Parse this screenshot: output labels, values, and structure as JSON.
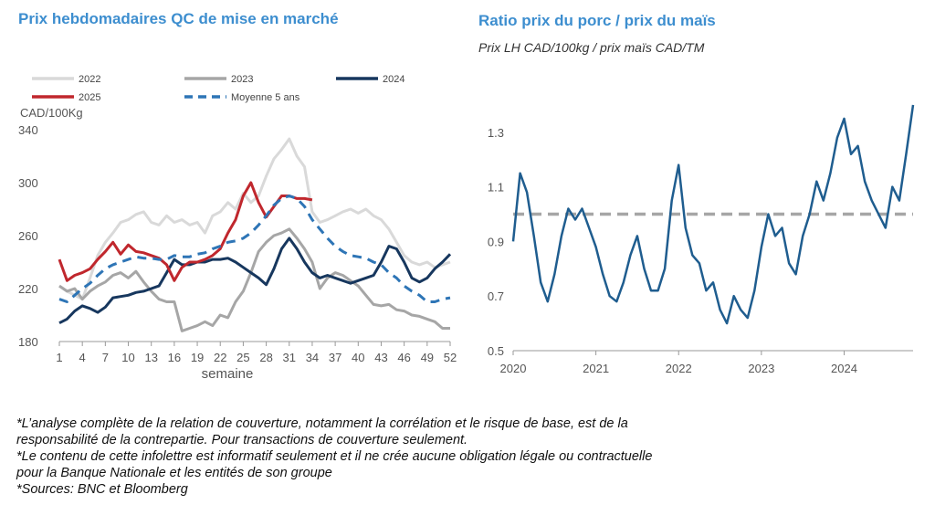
{
  "left_chart": {
    "title": "Prix hebdomadaires QC de mise en marché",
    "ylabel": "CAD/100Kg",
    "xlabel": "semaine"
  },
  "right_chart": {
    "title": "Ratio prix du porc / prix du maïs",
    "subtitle": "Prix LH CAD/100kg / prix maïs CAD/TM"
  },
  "footnotes": [
    "*L’analyse complète de la relation de couverture, notamment la corrélation et le risque de base, est de la",
    "responsabilité de la contrepartie. Pour transactions de couverture seulement.",
    "*Le contenu de cette infolettre est informatif seulement et il ne crée aucune obligation légale ou contractuelle",
    "pour la Banque Nationale et les entités de son groupe",
    "*Sources: BNC et Bloomberg"
  ],
  "chart_data": [
    {
      "type": "line",
      "title": "Prix hebdomadaires QC de mise en marché",
      "xlabel": "semaine",
      "ylabel": "CAD/100Kg",
      "xlim": [
        1,
        52
      ],
      "ylim": [
        180,
        340
      ],
      "yticks": [
        180,
        220,
        260,
        300,
        340
      ],
      "xticks": [
        1,
        4,
        7,
        10,
        13,
        16,
        19,
        22,
        25,
        28,
        31,
        34,
        37,
        40,
        43,
        46,
        49,
        52
      ],
      "grid": false,
      "legend": "top",
      "series": [
        {
          "name": "2022",
          "color": "#d9d9d9",
          "dash": "solid",
          "x": [
            1,
            2,
            3,
            4,
            5,
            6,
            7,
            8,
            9,
            10,
            11,
            12,
            13,
            14,
            15,
            16,
            17,
            18,
            19,
            20,
            21,
            22,
            23,
            24,
            25,
            26,
            27,
            28,
            29,
            30,
            31,
            32,
            33,
            34,
            35,
            36,
            37,
            38,
            39,
            40,
            41,
            42,
            43,
            44,
            45,
            46,
            47,
            48,
            49,
            50,
            51,
            52
          ],
          "values": [
            222,
            218,
            215,
            212,
            228,
            245,
            255,
            262,
            270,
            272,
            276,
            278,
            270,
            268,
            275,
            270,
            272,
            268,
            270,
            262,
            275,
            278,
            285,
            280,
            292,
            285,
            290,
            305,
            318,
            325,
            333,
            320,
            312,
            278,
            270,
            272,
            275,
            278,
            280,
            277,
            280,
            275,
            272,
            265,
            255,
            245,
            240,
            238,
            240,
            236,
            238,
            240
          ]
        },
        {
          "name": "2023",
          "color": "#a6a6a6",
          "dash": "solid",
          "x": [
            1,
            2,
            3,
            4,
            5,
            6,
            7,
            8,
            9,
            10,
            11,
            12,
            13,
            14,
            15,
            16,
            17,
            18,
            19,
            20,
            21,
            22,
            23,
            24,
            25,
            26,
            27,
            28,
            29,
            30,
            31,
            32,
            33,
            34,
            35,
            36,
            37,
            38,
            39,
            40,
            41,
            42,
            43,
            44,
            45,
            46,
            47,
            48,
            49,
            50,
            51,
            52
          ],
          "values": [
            222,
            218,
            220,
            212,
            218,
            222,
            225,
            230,
            232,
            228,
            233,
            225,
            218,
            212,
            210,
            210,
            188,
            190,
            192,
            195,
            192,
            200,
            198,
            210,
            218,
            232,
            248,
            255,
            260,
            262,
            265,
            258,
            250,
            240,
            220,
            228,
            232,
            230,
            226,
            222,
            215,
            208,
            207,
            208,
            204,
            203,
            200,
            199,
            197,
            195,
            190,
            190
          ]
        },
        {
          "name": "2024",
          "color": "#17375e",
          "dash": "solid",
          "x": [
            1,
            2,
            3,
            4,
            5,
            6,
            7,
            8,
            9,
            10,
            11,
            12,
            13,
            14,
            15,
            16,
            17,
            18,
            19,
            20,
            21,
            22,
            23,
            24,
            25,
            26,
            27,
            28,
            29,
            30,
            31,
            32,
            33,
            34,
            35,
            36,
            37,
            38,
            39,
            40,
            41,
            42,
            43,
            44,
            45,
            46,
            47,
            48,
            49,
            50,
            51,
            52
          ],
          "values": [
            194,
            197,
            203,
            207,
            205,
            202,
            206,
            213,
            214,
            215,
            217,
            218,
            220,
            222,
            232,
            242,
            238,
            238,
            240,
            240,
            242,
            242,
            243,
            240,
            236,
            232,
            228,
            223,
            235,
            250,
            258,
            250,
            240,
            232,
            228,
            230,
            228,
            226,
            224,
            226,
            228,
            230,
            240,
            252,
            250,
            240,
            228,
            225,
            228,
            235,
            240,
            246
          ]
        },
        {
          "name": "2025",
          "color": "#c0272d",
          "dash": "solid",
          "x": [
            1,
            2,
            3,
            4,
            5,
            6,
            7,
            8,
            9,
            10,
            11,
            12,
            13,
            14,
            15,
            16,
            17,
            18,
            19,
            20,
            21,
            22,
            23,
            24,
            25,
            26,
            27,
            28,
            29,
            30,
            31,
            32,
            33,
            34
          ],
          "values": [
            242,
            226,
            230,
            232,
            235,
            242,
            248,
            255,
            246,
            253,
            248,
            247,
            245,
            243,
            238,
            226,
            236,
            240,
            240,
            242,
            245,
            250,
            262,
            272,
            290,
            300,
            285,
            274,
            282,
            290,
            290,
            288,
            288,
            287
          ]
        },
        {
          "name": "Moyenne 5 ans",
          "color": "#2e75b6",
          "dash": "dashed",
          "x": [
            1,
            2,
            3,
            4,
            5,
            6,
            7,
            8,
            9,
            10,
            11,
            12,
            13,
            14,
            15,
            16,
            17,
            18,
            19,
            20,
            21,
            22,
            23,
            24,
            25,
            26,
            27,
            28,
            29,
            30,
            31,
            32,
            33,
            34,
            35,
            36,
            37,
            38,
            39,
            40,
            41,
            42,
            43,
            44,
            45,
            46,
            47,
            48,
            49,
            50,
            51,
            52
          ],
          "values": [
            212,
            210,
            215,
            220,
            224,
            230,
            235,
            238,
            240,
            242,
            244,
            243,
            243,
            242,
            242,
            245,
            244,
            244,
            246,
            247,
            250,
            252,
            255,
            256,
            258,
            262,
            268,
            275,
            283,
            288,
            290,
            288,
            282,
            272,
            265,
            258,
            252,
            248,
            245,
            244,
            243,
            240,
            238,
            232,
            228,
            222,
            218,
            215,
            210,
            210,
            212,
            213
          ]
        }
      ]
    },
    {
      "type": "line",
      "title": "Ratio prix du porc / prix du maïs",
      "subtitle": "Prix LH CAD/100kg / prix maïs CAD/TM",
      "ylim": [
        0.5,
        1.45
      ],
      "yticks": [
        0.5,
        0.7,
        0.9,
        1.1,
        1.3
      ],
      "xticks": [
        "2020",
        "2021",
        "2022",
        "2023",
        "2024"
      ],
      "xlim": [
        "2020-01",
        "2024-11"
      ],
      "grid": false,
      "reference_line": {
        "y": 1.0,
        "color": "#a6a6a6",
        "dash": "dashed"
      },
      "series": [
        {
          "color": "#1f5d8f",
          "x": [
            "2020-01",
            "2020-02",
            "2020-03",
            "2020-04",
            "2020-05",
            "2020-06",
            "2020-07",
            "2020-08",
            "2020-09",
            "2020-10",
            "2020-11",
            "2020-12",
            "2021-01",
            "2021-02",
            "2021-03",
            "2021-04",
            "2021-05",
            "2021-06",
            "2021-07",
            "2021-08",
            "2021-09",
            "2021-10",
            "2021-11",
            "2021-12",
            "2022-01",
            "2022-02",
            "2022-03",
            "2022-04",
            "2022-05",
            "2022-06",
            "2022-07",
            "2022-08",
            "2022-09",
            "2022-10",
            "2022-11",
            "2022-12",
            "2023-01",
            "2023-02",
            "2023-03",
            "2023-04",
            "2023-05",
            "2023-06",
            "2023-07",
            "2023-08",
            "2023-09",
            "2023-10",
            "2023-11",
            "2023-12",
            "2024-01",
            "2024-02",
            "2024-03",
            "2024-04",
            "2024-05",
            "2024-06",
            "2024-07",
            "2024-08",
            "2024-09",
            "2024-10",
            "2024-11"
          ],
          "values": [
            0.9,
            1.15,
            1.08,
            0.92,
            0.75,
            0.68,
            0.78,
            0.92,
            1.02,
            0.98,
            1.02,
            0.95,
            0.88,
            0.78,
            0.7,
            0.68,
            0.75,
            0.85,
            0.92,
            0.8,
            0.72,
            0.72,
            0.8,
            1.05,
            1.18,
            0.95,
            0.85,
            0.82,
            0.72,
            0.75,
            0.65,
            0.6,
            0.7,
            0.65,
            0.62,
            0.72,
            0.88,
            1.0,
            0.92,
            0.95,
            0.82,
            0.78,
            0.92,
            1.0,
            1.12,
            1.05,
            1.15,
            1.28,
            1.35,
            1.22,
            1.25,
            1.12,
            1.05,
            1.0,
            0.95,
            1.1,
            1.05,
            1.22,
            1.4
          ]
        }
      ]
    }
  ]
}
